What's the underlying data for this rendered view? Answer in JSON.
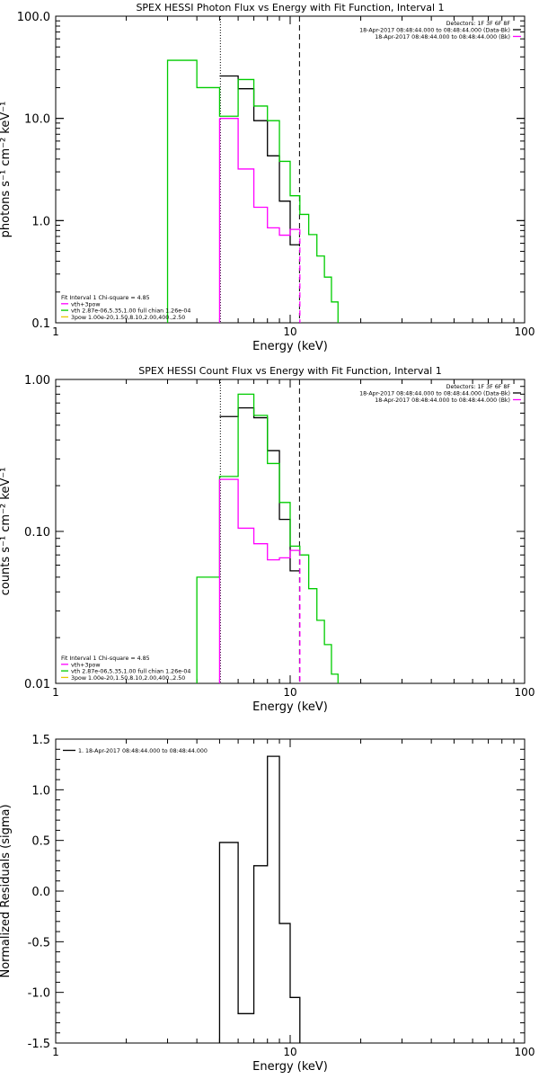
{
  "chart_data": [
    {
      "type": "step",
      "title": "SPEX HESSI Photon Flux vs Energy with Fit Function, Interval 1",
      "xlabel": "Energy (keV)",
      "ylabel": "photons s⁻¹ cm⁻² keV⁻¹",
      "x_scale": "log",
      "y_scale": "log",
      "xlim": [
        1,
        100
      ],
      "ylim": [
        0.1,
        100
      ],
      "x_ticks": [
        1,
        10,
        100
      ],
      "x_tick_labels": [
        "1",
        "10",
        "100"
      ],
      "y_ticks": [
        0.1,
        1,
        10,
        100
      ],
      "y_tick_labels": [
        "0.1",
        "1.0",
        "10.0",
        "100.0"
      ],
      "vlines": [
        {
          "x": 5.04,
          "style": "dotted",
          "color": "#000000"
        },
        {
          "x": 10.96,
          "style": "dashed",
          "color": "#000000"
        }
      ],
      "header_lines": [
        "Detectors: 1F 3F 6F 8F",
        "18-Apr-2017 08:48:44.000 to 08:48:44.000 (Data-Bk)",
        "18-Apr-2017 08:48:44.000 to 08:48:44.000 (Bk)"
      ],
      "header_colors": [
        "",
        "#000000",
        "#ff00ff"
      ],
      "fit_legend": [
        {
          "text": "Fit Interval 1    Chi-square = 4.85",
          "color": ""
        },
        {
          "text": "vth+3pow",
          "color": "#ff00ff"
        },
        {
          "text": "vth 2.87e-06,5.35,1.00   full chian 1.26e-04",
          "color": "#00cc00"
        },
        {
          "text": "3pow 1.00e-20,1.50,8.10,2.00,400.,2.50",
          "color": "#e8c800"
        }
      ],
      "series": [
        {
          "role": "data-bk",
          "color": "#000000",
          "edges": [
            5.0,
            6.0,
            7.0,
            8.0,
            9.0,
            10.0,
            11.0
          ],
          "values": [
            26,
            19.5,
            9.5,
            4.3,
            1.55,
            0.58
          ]
        },
        {
          "role": "model",
          "color": "#00cc00",
          "edges": [
            3.0,
            4.0,
            5.0,
            6.0,
            7.0,
            8.0,
            9.0,
            10.0,
            11.0,
            12.0,
            13.0,
            14.0,
            15.0,
            16.0
          ],
          "values": [
            37,
            20,
            10.5,
            24,
            13.2,
            9.5,
            3.8,
            1.75,
            1.15,
            0.73,
            0.45,
            0.28,
            0.16
          ],
          "drop_to_floor": true
        },
        {
          "role": "background",
          "color": "#ff00ff",
          "edges": [
            5.0,
            6.0,
            7.0,
            8.0,
            9.0,
            10.0,
            11.0
          ],
          "values": [
            10.0,
            3.2,
            1.35,
            0.85,
            0.72,
            0.82
          ]
        }
      ]
    },
    {
      "type": "step",
      "title": "SPEX HESSI Count Flux vs Energy with Fit Function, Interval 1",
      "xlabel": "Energy (keV)",
      "ylabel": "counts s⁻¹ cm⁻² keV⁻¹",
      "x_scale": "log",
      "y_scale": "log",
      "xlim": [
        1,
        100
      ],
      "ylim": [
        0.01,
        1.0
      ],
      "x_ticks": [
        1,
        10,
        100
      ],
      "x_tick_labels": [
        "1",
        "10",
        "100"
      ],
      "y_ticks": [
        0.01,
        0.1,
        1.0
      ],
      "y_tick_labels": [
        "0.01",
        "0.10",
        "1.00"
      ],
      "vlines": [
        {
          "x": 5.04,
          "style": "dotted",
          "color": "#000000"
        },
        {
          "x": 10.96,
          "style": "dashed",
          "color": "#000000"
        }
      ],
      "header_lines": [
        "Detectors: 1F 3F 6F 8F",
        "18-Apr-2017 08:48:44.000 to 08:48:44.000 (Data-Bk)",
        "18-Apr-2017 08:48:44.000 to 08:48:44.000 (Bk)"
      ],
      "header_colors": [
        "",
        "#000000",
        "#ff00ff"
      ],
      "fit_legend": [
        {
          "text": "Fit Interval 1    Chi-square = 4.85",
          "color": ""
        },
        {
          "text": "vth+3pow",
          "color": "#ff00ff"
        },
        {
          "text": "vth 2.87e-06,5.35,1.00   full chian 1.26e-04",
          "color": "#00cc00"
        },
        {
          "text": "3pow 1.00e-20,1.50,8.10,2.00,400.,2.50",
          "color": "#e8c800"
        }
      ],
      "series": [
        {
          "role": "data-bk",
          "color": "#000000",
          "edges": [
            5.0,
            6.0,
            7.0,
            8.0,
            9.0,
            10.0,
            11.0
          ],
          "values": [
            0.57,
            0.65,
            0.56,
            0.34,
            0.12,
            0.055
          ]
        },
        {
          "role": "model",
          "color": "#00cc00",
          "edges": [
            4.0,
            5.0,
            6.0,
            7.0,
            8.0,
            9.0,
            10.0,
            11.0,
            12.0,
            13.0,
            14.0,
            15.0,
            16.0
          ],
          "values": [
            0.05,
            0.23,
            0.8,
            0.58,
            0.28,
            0.155,
            0.08,
            0.07,
            0.042,
            0.026,
            0.018,
            0.0115
          ],
          "drop_to_floor": true
        },
        {
          "role": "background",
          "color": "#ff00ff",
          "edges": [
            5.0,
            6.0,
            7.0,
            8.0,
            9.0,
            10.0,
            11.0
          ],
          "values": [
            0.22,
            0.105,
            0.083,
            0.065,
            0.067,
            0.075
          ]
        }
      ]
    },
    {
      "type": "step",
      "title": "",
      "xlabel": "Energy (keV)",
      "ylabel": "Normalized Residuals (sigma)",
      "x_scale": "log",
      "y_scale": "linear",
      "xlim": [
        1,
        100
      ],
      "ylim": [
        -1.5,
        1.5
      ],
      "x_ticks": [
        1,
        10,
        100
      ],
      "x_tick_labels": [
        "1",
        "10",
        "100"
      ],
      "y_ticks": [
        -1.5,
        -1.0,
        -0.5,
        0.0,
        0.5,
        1.0,
        1.5
      ],
      "y_tick_labels": [
        "-1.5",
        "-1.0",
        "-0.5",
        "0.0",
        "0.5",
        "1.0",
        "1.5"
      ],
      "legend": {
        "text": "1. 18-Apr-2017 08:48:44.000 to 08:48:44.000",
        "color": "#000000"
      },
      "series": [
        {
          "role": "residuals",
          "color": "#000000",
          "edges": [
            5.0,
            6.0,
            7.0,
            8.0,
            9.0,
            10.0,
            11.0
          ],
          "values": [
            0.48,
            -1.21,
            0.25,
            1.33,
            -0.32,
            -1.05
          ],
          "drop_to_floor": true
        }
      ]
    }
  ]
}
